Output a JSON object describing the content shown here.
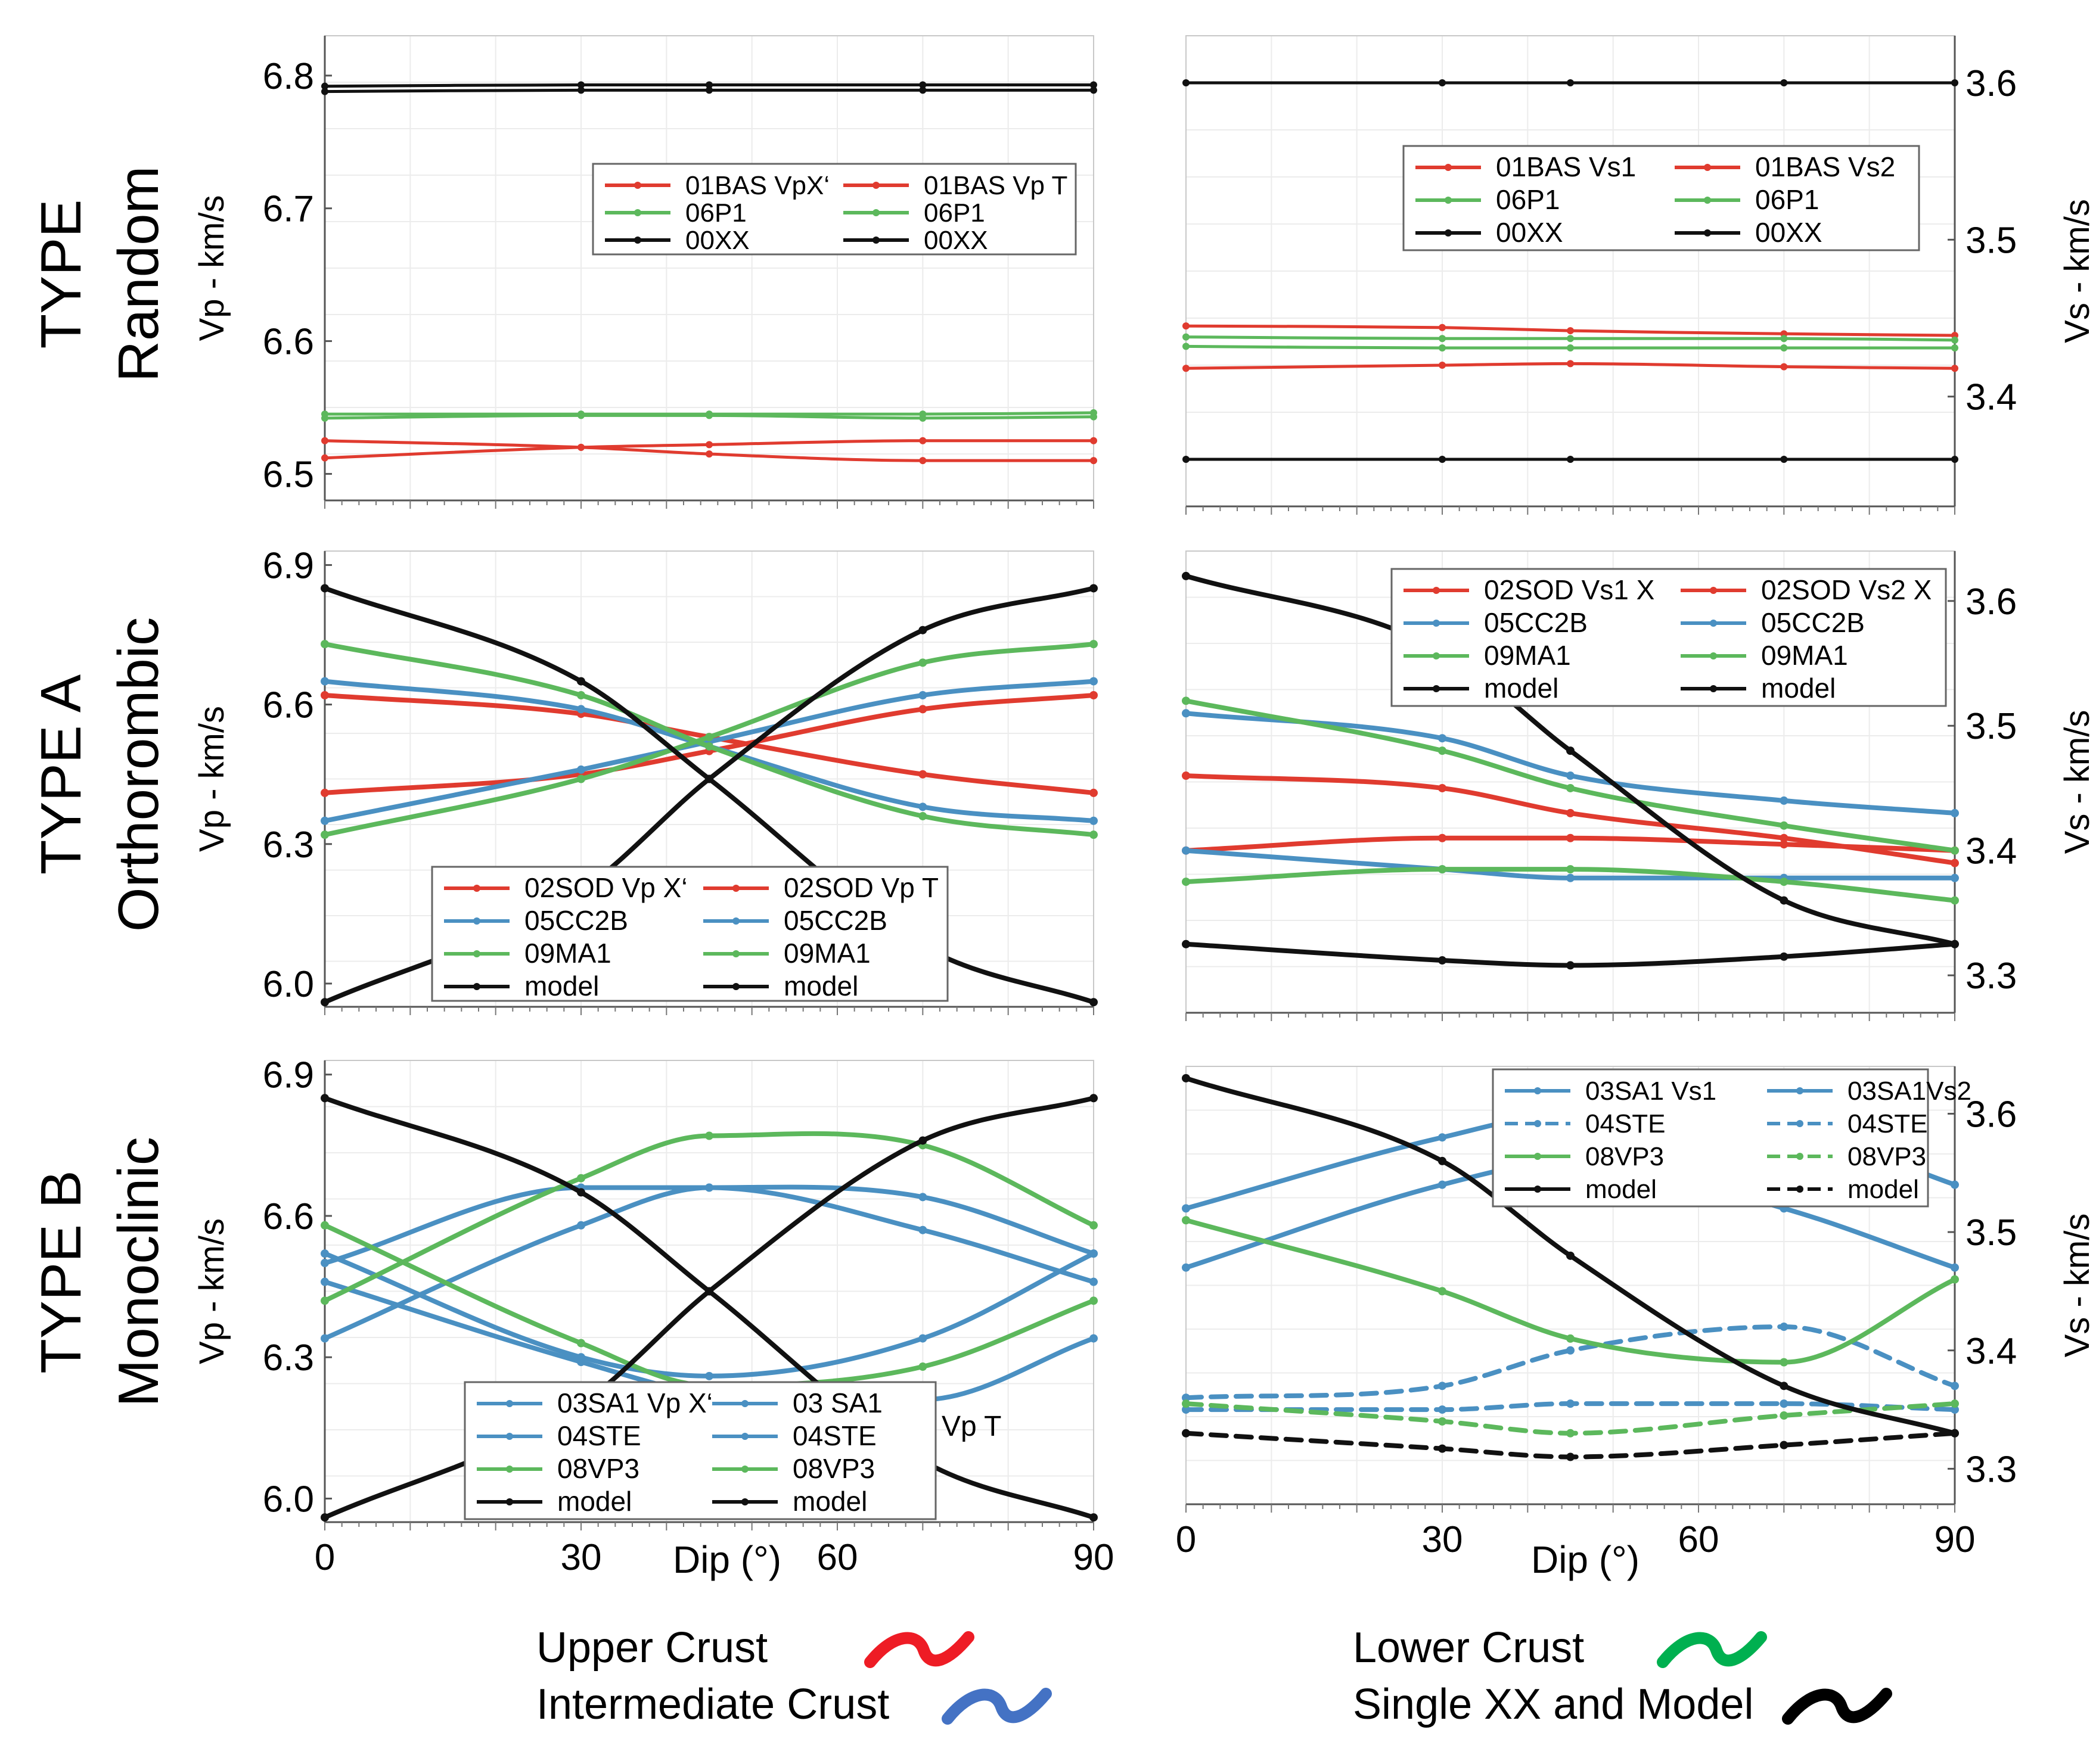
{
  "figure": {
    "x_label": "Dip (°)",
    "x_ticks": [
      0,
      30,
      60,
      90
    ],
    "vp_label": "Vp - km/s",
    "vs_label": "Vs - km/s"
  },
  "rows": [
    {
      "line1": "TYPE",
      "line2": "Random"
    },
    {
      "line1": "TYPE A",
      "line2": "Orthorombic"
    },
    {
      "line1": "TYPE B",
      "line2": "Monoclinic"
    }
  ],
  "crust_legend": [
    {
      "label": "Upper Crust",
      "color": "#ee1c25"
    },
    {
      "label": "Intermediate Crust",
      "color": "#4472c4"
    },
    {
      "label": "Lower Crust",
      "color": "#00b050"
    },
    {
      "label": "Single XX and Model",
      "color": "#000000"
    }
  ],
  "colors": {
    "red": "#e03b2f",
    "blue": "#4a90c2",
    "green": "#5cb85c",
    "black": "#111111"
  },
  "chart_data": [
    {
      "id": "random-vp",
      "type": "line",
      "x": [
        0,
        30,
        45,
        70,
        90
      ],
      "ylim": [
        6.48,
        6.83
      ],
      "yticks": [
        6.5,
        6.6,
        6.7,
        6.8
      ],
      "ylabel": "Vp - km/s",
      "legend": [
        "01BAS VpX‘",
        "01BAS Vp T",
        "06P1",
        "06P1",
        "00XX",
        "00XX"
      ],
      "series": [
        {
          "color": "red",
          "values": [
            6.525,
            6.52,
            6.515,
            6.51,
            6.51
          ]
        },
        {
          "color": "red",
          "values": [
            6.512,
            6.52,
            6.522,
            6.525,
            6.525
          ]
        },
        {
          "color": "green",
          "values": [
            6.545,
            6.545,
            6.545,
            6.545,
            6.546
          ]
        },
        {
          "color": "green",
          "values": [
            6.542,
            6.544,
            6.544,
            6.542,
            6.543
          ]
        },
        {
          "color": "black",
          "values": [
            6.792,
            6.793,
            6.793,
            6.793,
            6.793
          ]
        },
        {
          "color": "black",
          "values": [
            6.788,
            6.789,
            6.789,
            6.789,
            6.789
          ]
        }
      ]
    },
    {
      "id": "random-vs",
      "type": "line",
      "x": [
        0,
        30,
        45,
        70,
        90
      ],
      "ylim": [
        3.33,
        3.63
      ],
      "yticks": [
        3.4,
        3.5,
        3.6
      ],
      "ylabel": "Vs - km/s",
      "legend": [
        "01BAS Vs1",
        "01BAS Vs2",
        "06P1",
        "06P1",
        "00XX",
        "00XX"
      ],
      "series": [
        {
          "color": "red",
          "values": [
            3.445,
            3.444,
            3.442,
            3.44,
            3.439
          ]
        },
        {
          "color": "red",
          "values": [
            3.418,
            3.42,
            3.421,
            3.419,
            3.418
          ]
        },
        {
          "color": "green",
          "values": [
            3.438,
            3.437,
            3.437,
            3.437,
            3.436
          ]
        },
        {
          "color": "green",
          "values": [
            3.432,
            3.431,
            3.431,
            3.431,
            3.431
          ]
        },
        {
          "color": "black",
          "values": [
            3.6,
            3.6,
            3.6,
            3.6,
            3.6
          ]
        },
        {
          "color": "black",
          "values": [
            3.36,
            3.36,
            3.36,
            3.36,
            3.36
          ]
        }
      ]
    },
    {
      "id": "typea-vp",
      "type": "line",
      "x": [
        0,
        30,
        45,
        70,
        90
      ],
      "ylim": [
        5.95,
        6.93
      ],
      "yticks": [
        6.0,
        6.3,
        6.6,
        6.9
      ],
      "ylabel": "Vp - km/s",
      "legend": [
        "02SOD Vp X‘",
        "02SOD Vp T",
        "05CC2B",
        "05CC2B",
        "09MA1",
        "09MA1",
        "model",
        "model"
      ],
      "series": [
        {
          "color": "red",
          "values": [
            6.62,
            6.58,
            6.53,
            6.45,
            6.41
          ]
        },
        {
          "color": "red",
          "values": [
            6.41,
            6.45,
            6.5,
            6.59,
            6.62
          ]
        },
        {
          "color": "blue",
          "values": [
            6.65,
            6.59,
            6.51,
            6.38,
            6.35
          ]
        },
        {
          "color": "blue",
          "values": [
            6.35,
            6.46,
            6.52,
            6.62,
            6.65
          ]
        },
        {
          "color": "green",
          "values": [
            6.73,
            6.62,
            6.51,
            6.36,
            6.32
          ]
        },
        {
          "color": "green",
          "values": [
            6.32,
            6.44,
            6.53,
            6.69,
            6.73
          ]
        },
        {
          "color": "black",
          "values": [
            6.85,
            6.65,
            6.44,
            6.08,
            5.96
          ]
        },
        {
          "color": "black",
          "values": [
            5.96,
            6.2,
            6.44,
            6.76,
            6.85
          ]
        }
      ]
    },
    {
      "id": "typea-vs",
      "type": "line",
      "x": [
        0,
        30,
        45,
        70,
        90
      ],
      "ylim": [
        3.27,
        3.64
      ],
      "yticks": [
        3.3,
        3.4,
        3.5,
        3.6
      ],
      "ylabel": "Vs - km/s",
      "legend": [
        "02SOD Vs1 X",
        "02SOD Vs2 X",
        "05CC2B",
        "05CC2B",
        "09MA1",
        "09MA1",
        "model",
        "model"
      ],
      "series": [
        {
          "color": "red",
          "values": [
            3.46,
            3.45,
            3.43,
            3.41,
            3.39
          ]
        },
        {
          "color": "red",
          "values": [
            3.4,
            3.41,
            3.41,
            3.405,
            3.4
          ]
        },
        {
          "color": "blue",
          "values": [
            3.51,
            3.49,
            3.46,
            3.44,
            3.43
          ]
        },
        {
          "color": "blue",
          "values": [
            3.4,
            3.385,
            3.378,
            3.378,
            3.378
          ]
        },
        {
          "color": "green",
          "values": [
            3.52,
            3.48,
            3.45,
            3.42,
            3.4
          ]
        },
        {
          "color": "green",
          "values": [
            3.375,
            3.385,
            3.385,
            3.375,
            3.36
          ]
        },
        {
          "color": "black",
          "values": [
            3.62,
            3.56,
            3.48,
            3.36,
            3.325
          ]
        },
        {
          "color": "black",
          "values": [
            3.325,
            3.312,
            3.308,
            3.315,
            3.325
          ]
        }
      ]
    },
    {
      "id": "typeb-vp",
      "type": "line",
      "x": [
        0,
        30,
        45,
        70,
        90
      ],
      "ylim": [
        5.95,
        6.93
      ],
      "yticks": [
        6.0,
        6.3,
        6.6,
        6.9
      ],
      "ylabel": "Vp - km/s",
      "legend": [
        "03SA1 Vp X‘",
        "03 SA1",
        "04STE",
        "04STE",
        "08VP3",
        "08VP3",
        "model",
        "model"
      ],
      "series": [
        {
          "color": "blue",
          "values": [
            6.52,
            6.3,
            6.26,
            6.34,
            6.52
          ]
        },
        {
          "color": "blue",
          "values": [
            6.46,
            6.29,
            6.22,
            6.21,
            6.34
          ]
        },
        {
          "color": "blue",
          "values": [
            6.5,
            6.66,
            6.66,
            6.57,
            6.46
          ]
        },
        {
          "color": "blue",
          "values": [
            6.34,
            6.58,
            6.66,
            6.64,
            6.52
          ]
        },
        {
          "color": "green",
          "values": [
            6.58,
            6.33,
            6.24,
            6.28,
            6.42
          ]
        },
        {
          "color": "green",
          "values": [
            6.42,
            6.68,
            6.77,
            6.75,
            6.58
          ]
        },
        {
          "color": "black",
          "values": [
            6.85,
            6.65,
            6.44,
            6.08,
            5.96
          ]
        },
        {
          "color": "black",
          "values": [
            5.96,
            6.2,
            6.44,
            6.76,
            6.85
          ]
        }
      ],
      "annotation": "Vp T"
    },
    {
      "id": "typeb-vs",
      "type": "line",
      "x": [
        0,
        30,
        45,
        70,
        90
      ],
      "ylim": [
        3.27,
        3.64
      ],
      "yticks": [
        3.3,
        3.4,
        3.5,
        3.6
      ],
      "ylabel": "Vs - km/s",
      "legend": [
        "03SA1 Vs1",
        "03SA1Vs2",
        "04STE",
        "04STE",
        "08VP3",
        "08VP3",
        "model",
        "model"
      ],
      "series": [
        {
          "color": "blue",
          "values": [
            3.52,
            3.58,
            3.6,
            3.59,
            3.54
          ]
        },
        {
          "color": "blue",
          "values": [
            3.47,
            3.54,
            3.56,
            3.52,
            3.47
          ]
        },
        {
          "color": "blue",
          "values": [
            3.36,
            3.37,
            3.4,
            3.42,
            3.37
          ],
          "dashed": true
        },
        {
          "color": "blue",
          "values": [
            3.35,
            3.35,
            3.355,
            3.355,
            3.35
          ],
          "dashed": true
        },
        {
          "color": "green",
          "values": [
            3.51,
            3.45,
            3.41,
            3.39,
            3.46
          ]
        },
        {
          "color": "green",
          "values": [
            3.355,
            3.34,
            3.33,
            3.345,
            3.355
          ],
          "dashed": true
        },
        {
          "color": "black",
          "values": [
            3.63,
            3.56,
            3.48,
            3.37,
            3.33
          ]
        },
        {
          "color": "black",
          "values": [
            3.33,
            3.317,
            3.31,
            3.32,
            3.33
          ],
          "dashed": true
        }
      ]
    }
  ]
}
